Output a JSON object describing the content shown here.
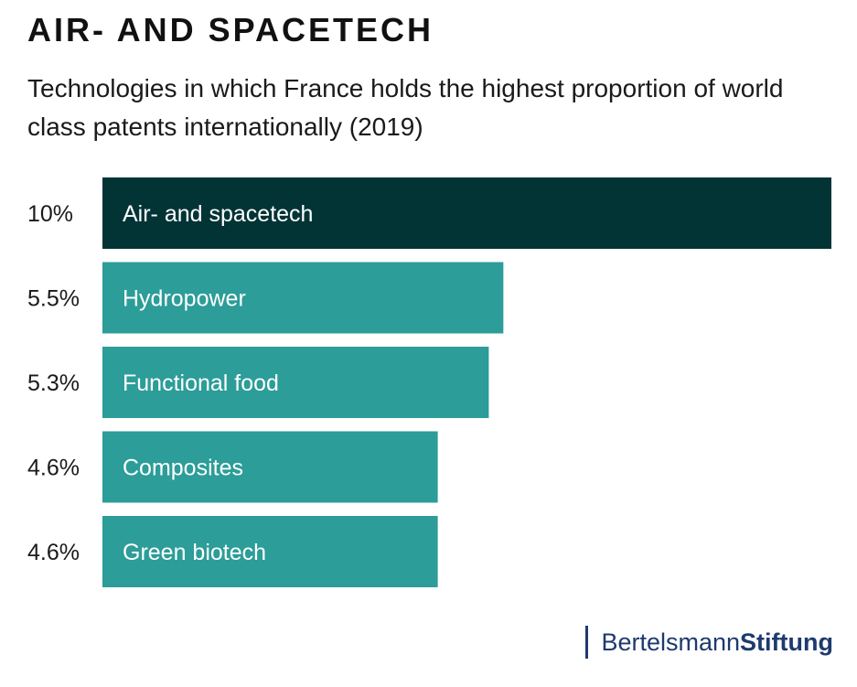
{
  "header": {
    "title": "AIR- AND SPACETECH",
    "subtitle": "Technologies in which France holds the highest proportion of world class patents internationally (2019)"
  },
  "chart_data": {
    "type": "bar",
    "orientation": "horizontal",
    "categories": [
      "Air- and spacetech",
      "Hydropower",
      "Functional food",
      "Composites",
      "Green biotech"
    ],
    "values": [
      10,
      5.5,
      5.3,
      4.6,
      4.6
    ],
    "value_labels": [
      "10%",
      "5.5%",
      "5.3%",
      "4.6%",
      "4.6%"
    ],
    "unit": "%",
    "xlim": [
      0,
      10
    ],
    "grid": false,
    "colors": {
      "highlight": "#023436",
      "default": "#2c9d98",
      "label": "#ffffff"
    }
  },
  "footer": {
    "logo_regular": "Bertelsmann",
    "logo_bold": "Stiftung"
  }
}
